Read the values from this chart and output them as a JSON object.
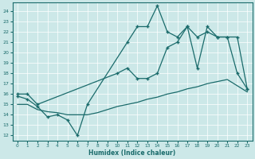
{
  "xlabel": "Humidex (Indice chaleur)",
  "bg_color": "#cce8e8",
  "line_color": "#1a6b6b",
  "grid_color": "#b8d8d8",
  "xlim": [
    -0.5,
    23.5
  ],
  "ylim": [
    11.5,
    24.8
  ],
  "yticks": [
    12,
    13,
    14,
    15,
    16,
    17,
    18,
    19,
    20,
    21,
    22,
    23,
    24
  ],
  "xticks": [
    0,
    1,
    2,
    3,
    4,
    5,
    6,
    7,
    8,
    9,
    10,
    11,
    12,
    13,
    14,
    15,
    16,
    17,
    18,
    19,
    20,
    21,
    22,
    23
  ],
  "series1_x": [
    0,
    1,
    2,
    3,
    4,
    5,
    6,
    7,
    11,
    12,
    13,
    14,
    15,
    16,
    17,
    18,
    19,
    20,
    21,
    22,
    23
  ],
  "series1_y": [
    15.8,
    15.5,
    14.8,
    13.8,
    14.0,
    13.5,
    12.0,
    15.0,
    21.0,
    22.5,
    22.5,
    24.5,
    22.0,
    21.5,
    22.5,
    18.5,
    22.5,
    21.5,
    21.5,
    18.0,
    16.5
  ],
  "series2_x": [
    0,
    1,
    2,
    10,
    11,
    12,
    13,
    14,
    15,
    16,
    17,
    18,
    19,
    20,
    21,
    22,
    23
  ],
  "series2_y": [
    16.0,
    16.0,
    15.0,
    18.0,
    18.5,
    17.5,
    17.5,
    18.0,
    20.5,
    21.0,
    22.5,
    21.5,
    22.0,
    21.5,
    21.5,
    21.5,
    16.5
  ],
  "series3_x": [
    0,
    1,
    2,
    3,
    4,
    5,
    6,
    7,
    8,
    9,
    10,
    11,
    12,
    13,
    14,
    15,
    16,
    17,
    18,
    19,
    20,
    21,
    22,
    23
  ],
  "series3_y": [
    15.0,
    15.0,
    14.5,
    14.3,
    14.2,
    14.0,
    14.0,
    14.0,
    14.2,
    14.5,
    14.8,
    15.0,
    15.2,
    15.5,
    15.7,
    16.0,
    16.2,
    16.5,
    16.7,
    17.0,
    17.2,
    17.4,
    16.8,
    16.2
  ]
}
